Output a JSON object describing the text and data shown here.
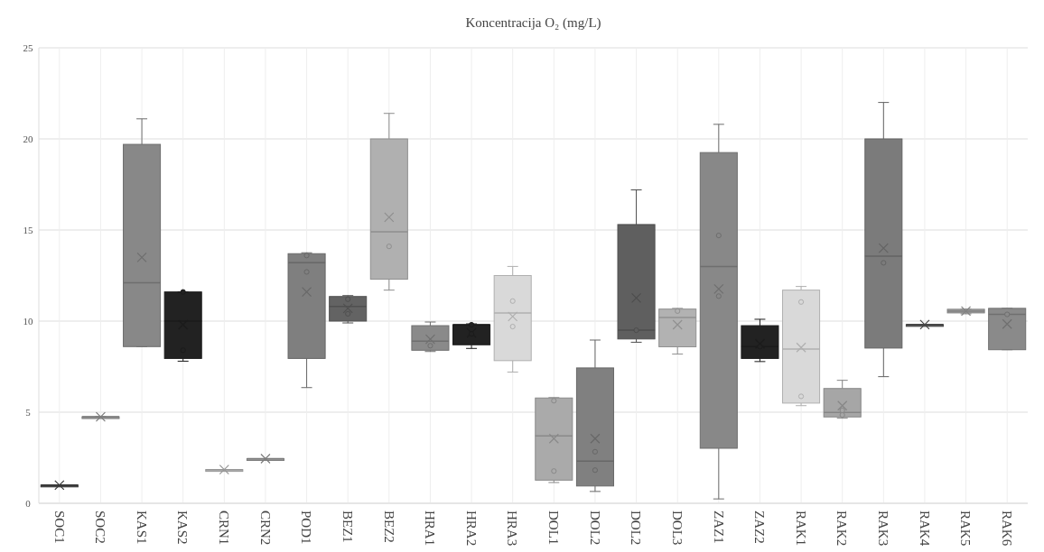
{
  "chart_data": {
    "type": "box",
    "title": "Koncentracija O₂ (mg/L)",
    "categories": [
      "SOC1",
      "SOC2",
      "KAS1",
      "KAS2",
      "CRN1",
      "CRN2",
      "POD1",
      "BEZ1",
      "BEZ2",
      "HRA1",
      "HRA2",
      "HRA3",
      "DOL1",
      "DOL2",
      "DOL2",
      "DOL3",
      "ZAZ1",
      "ZAZ2",
      "RAK1",
      "RAK2",
      "RAK3",
      "RAK4",
      "RAK5",
      "RAK6"
    ],
    "colors": [
      "#444444",
      "#999999",
      "#888888",
      "#222222",
      "#bbbbbb",
      "#999999",
      "#7f7f7f",
      "#636363",
      "#b0b0b0",
      "#8a8a8a",
      "#222222",
      "#d9d9d9",
      "#aaaaaa",
      "#808080",
      "#5f5f5f",
      "#b2b2b2",
      "#888888",
      "#222222",
      "#d9d9d9",
      "#a6a6a6",
      "#7b7b7b",
      "#555555",
      "#a0a0a0",
      "#8a8a8a"
    ],
    "boxes": [
      {
        "low": 1.0,
        "q1": 1.0,
        "median": 1.0,
        "q3": 1.0,
        "high": 1.0,
        "mean": 1.0
      },
      {
        "low": 4.75,
        "q1": 4.75,
        "median": 4.75,
        "q3": 4.75,
        "high": 4.75,
        "mean": 4.75
      },
      {
        "low": 8.6,
        "q1": 8.6,
        "median": 12.1,
        "q3": 19.7,
        "high": 21.1,
        "mean": 13.5
      },
      {
        "low": 7.8,
        "q1": 7.95,
        "median": 10.0,
        "q3": 11.6,
        "high": 11.6,
        "mean": 9.8,
        "outliers": [
          11.6,
          8.4
        ]
      },
      {
        "low": 1.85,
        "q1": 1.85,
        "median": 1.85,
        "q3": 1.85,
        "high": 1.85,
        "mean": 1.85
      },
      {
        "low": 2.45,
        "q1": 2.45,
        "median": 2.45,
        "q3": 2.45,
        "high": 2.45,
        "mean": 2.45
      },
      {
        "low": 6.35,
        "q1": 7.95,
        "median": 13.2,
        "q3": 13.7,
        "high": 13.75,
        "mean": 11.6,
        "outliers": [
          13.6,
          12.7
        ]
      },
      {
        "low": 9.9,
        "q1": 10.0,
        "median": 10.8,
        "q3": 11.35,
        "high": 11.4,
        "mean": 10.7,
        "outliers": [
          11.2,
          10.4
        ]
      },
      {
        "low": 11.7,
        "q1": 12.3,
        "median": 14.9,
        "q3": 20.0,
        "high": 21.4,
        "mean": 15.7,
        "outliers": [
          14.1
        ]
      },
      {
        "low": 8.33,
        "q1": 8.4,
        "median": 8.9,
        "q3": 9.75,
        "high": 9.95,
        "mean": 9.0,
        "outliers": [
          8.65
        ]
      },
      {
        "low": 8.5,
        "q1": 8.7,
        "median": 9.8,
        "q3": 9.8,
        "high": 9.85,
        "mean": 9.35,
        "outliers": [
          9.8,
          9.3
        ]
      },
      {
        "low": 7.2,
        "q1": 7.83,
        "median": 10.45,
        "q3": 12.5,
        "high": 13.0,
        "mean": 10.25,
        "outliers": [
          11.1,
          9.7
        ]
      },
      {
        "low": 1.14,
        "q1": 1.27,
        "median": 3.7,
        "q3": 5.78,
        "high": 5.8,
        "mean": 3.55,
        "outliers": [
          5.63,
          1.77
        ]
      },
      {
        "low": 0.65,
        "q1": 0.95,
        "median": 2.32,
        "q3": 7.43,
        "high": 8.96,
        "mean": 3.55,
        "outliers": [
          2.83,
          1.82
        ]
      },
      {
        "low": 8.84,
        "q1": 9.02,
        "median": 9.5,
        "q3": 15.3,
        "high": 17.2,
        "mean": 11.27,
        "outliers": [
          9.5
        ]
      },
      {
        "low": 8.19,
        "q1": 8.59,
        "median": 10.2,
        "q3": 10.66,
        "high": 10.7,
        "mean": 9.8,
        "outliers": [
          10.55
        ]
      },
      {
        "low": 0.24,
        "q1": 3.02,
        "median": 13.0,
        "q3": 19.25,
        "high": 20.8,
        "mean": 11.76,
        "outliers": [
          14.7,
          11.37
        ]
      },
      {
        "low": 7.78,
        "q1": 7.95,
        "median": 8.6,
        "q3": 9.75,
        "high": 10.1,
        "mean": 8.75,
        "outliers": [
          8.6
        ]
      },
      {
        "low": 5.36,
        "q1": 5.5,
        "median": 8.46,
        "q3": 11.7,
        "high": 11.9,
        "mean": 8.55,
        "outliers": [
          11.05,
          5.87
        ]
      },
      {
        "low": 4.67,
        "q1": 4.74,
        "median": 4.99,
        "q3": 6.3,
        "high": 6.75,
        "mean": 5.36,
        "outliers": [
          5.1,
          4.85
        ]
      },
      {
        "low": 6.95,
        "q1": 8.52,
        "median": 13.57,
        "q3": 20.0,
        "high": 22.0,
        "mean": 14.0,
        "outliers": [
          13.2
        ]
      },
      {
        "low": 9.81,
        "q1": 9.81,
        "median": 9.81,
        "q3": 9.81,
        "high": 9.81,
        "mean": 9.81
      },
      {
        "low": 10.4,
        "q1": 10.45,
        "median": 10.55,
        "q3": 10.65,
        "high": 10.65,
        "mean": 10.55
      },
      {
        "low": 8.43,
        "q1": 8.43,
        "median": 10.37,
        "q3": 10.7,
        "high": 10.7,
        "mean": 9.84,
        "outliers": [
          10.37
        ]
      }
    ],
    "ylim": [
      0,
      25
    ],
    "yticks": [
      0,
      5,
      10,
      15,
      20,
      25
    ],
    "grid": true
  }
}
